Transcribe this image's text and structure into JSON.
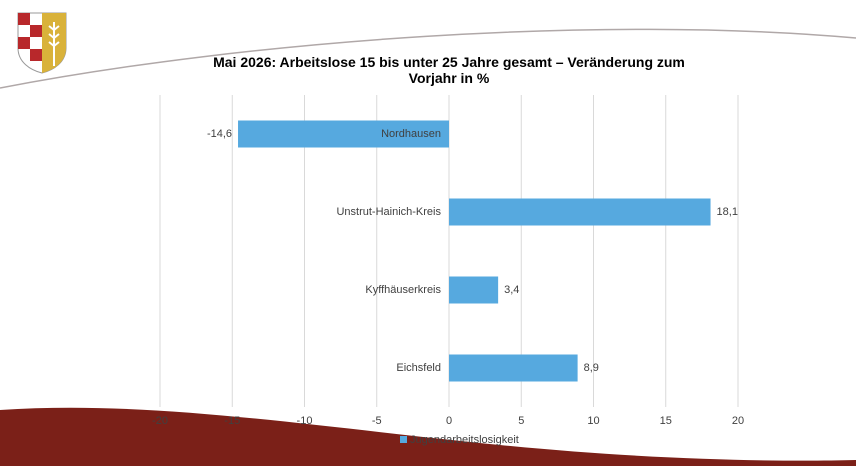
{
  "chart_data": {
    "type": "hbar",
    "title": "Mai 2026: Arbeitslose 15 bis unter 25 Jahre gesamt – Veränderung zum Vorjahr in %",
    "categories": [
      "Nordhausen",
      "Unstrut-Hainich-Kreis",
      "Kyffhäuserkreis",
      "Eichsfeld"
    ],
    "series": [
      {
        "name": "Jugendarbeitslosigkeit",
        "color": "#56a9df",
        "values": [
          -14.6,
          18.1,
          3.4,
          8.9
        ],
        "value_labels": [
          "-14,6",
          "18,1",
          "3,4",
          "8,9"
        ]
      }
    ],
    "xlim": [
      -20,
      20
    ],
    "xticks": [
      -20,
      -15,
      -10,
      -5,
      0,
      5,
      10,
      15,
      20
    ],
    "grid": true,
    "legend": "bottom"
  }
}
